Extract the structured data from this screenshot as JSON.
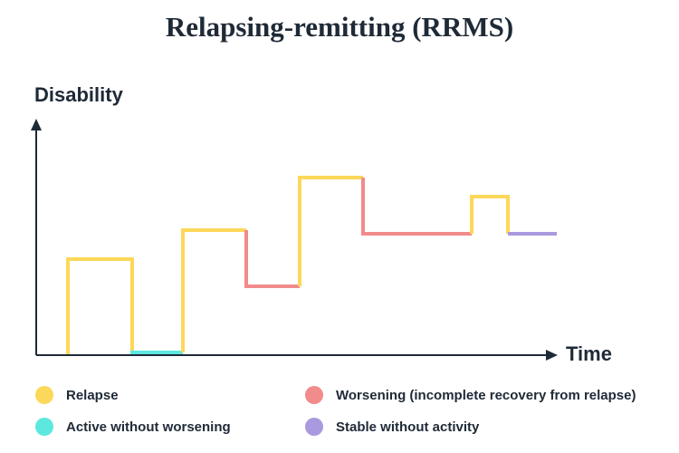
{
  "title": "Relapsing-remitting (RRMS)",
  "y_axis_label": "Disability",
  "x_axis_label": "Time",
  "legend": [
    {
      "label": "Relapse",
      "color": "#fcd85a"
    },
    {
      "label": "Worsening (incomplete recovery from relapse)",
      "color": "#f28b8b"
    },
    {
      "label": "Active without worsening",
      "color": "#5ce8df"
    },
    {
      "label": "Stable without activity",
      "color": "#a99ae0"
    }
  ]
}
